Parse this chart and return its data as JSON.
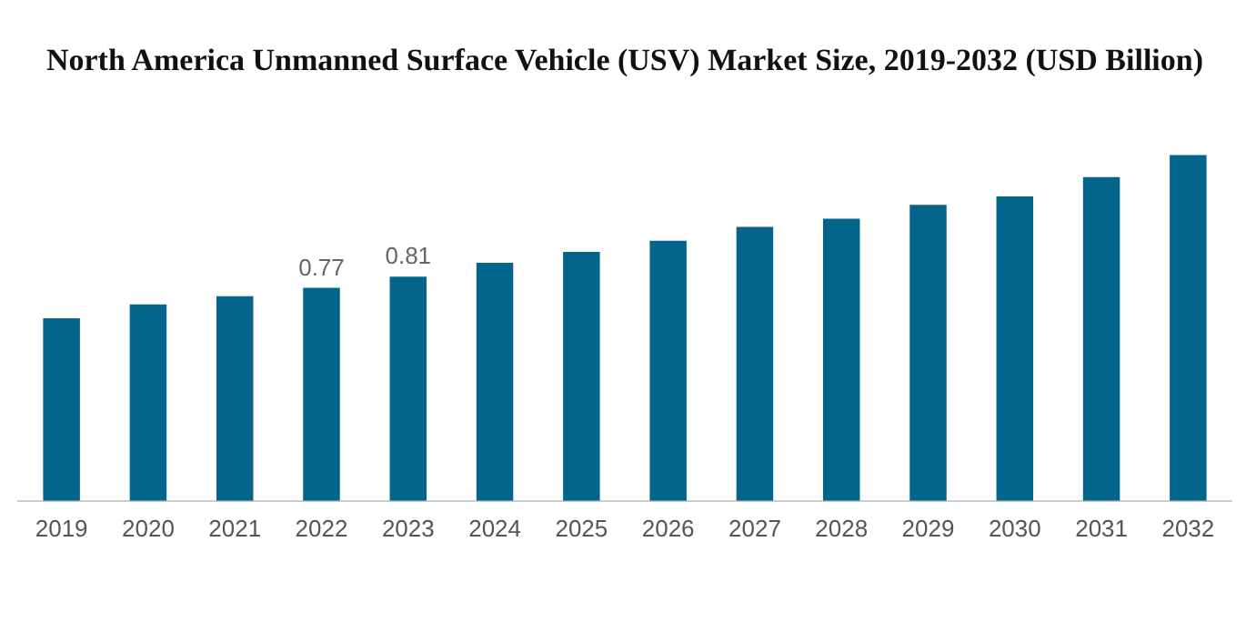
{
  "chart_data": {
    "type": "bar",
    "title": "North America Unmanned Surface Vehicle (USV) Market Size, 2019-2032 (USD Billion)",
    "categories": [
      "2019",
      "2020",
      "2021",
      "2022",
      "2023",
      "2024",
      "2025",
      "2026",
      "2027",
      "2028",
      "2029",
      "2030",
      "2031",
      "2032"
    ],
    "values": [
      0.66,
      0.71,
      0.74,
      0.77,
      0.81,
      0.86,
      0.9,
      0.94,
      0.99,
      1.02,
      1.07,
      1.1,
      1.17,
      1.25
    ],
    "value_labels": [
      null,
      null,
      null,
      "0.77",
      "0.81",
      null,
      null,
      null,
      null,
      null,
      null,
      null,
      null,
      null
    ],
    "color": "#04658c",
    "grid": false,
    "legend": false
  }
}
